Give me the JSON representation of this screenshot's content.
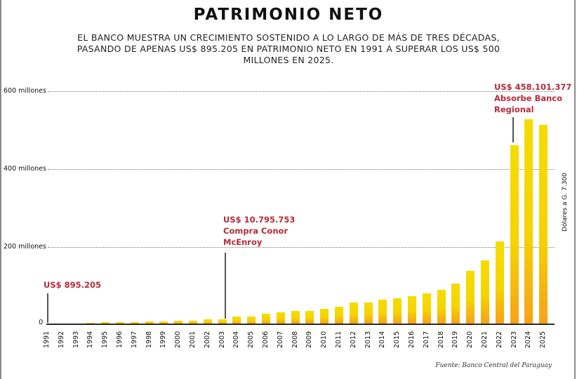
{
  "header": {
    "title": "PATRIMONIO NETO",
    "subtitle_lines": [
      "EL BANCO MUESTRA UN CRECIMIENTO SOSTENIDO A LO LARGO DE MÁS DE TRES DÉCADAS,",
      "PASANDO DE APENAS US$ 895.205 EN PATRIMONIO NETO EN 1991 A SUPERAR LOS US$ 500",
      "MILLONES EN 2025."
    ]
  },
  "axis": {
    "y_ticks": [
      "600 millones",
      "400 millones",
      "200 millones"
    ],
    "zero": "0",
    "side_note": "Dólares a G. 7.300"
  },
  "annotations": {
    "first": {
      "line1": "US$ 895.205"
    },
    "mid": {
      "line1": "US$ 10.795.753",
      "line2": "Compra Conor",
      "line3": "McEnroy"
    },
    "last": {
      "line1": "US$ 458.101.377",
      "line2": "Absorbe Banco",
      "line3": "Regional"
    }
  },
  "source": "Fuente: Banco Central del Paraguay",
  "colors": {
    "bar_top": "#f5dc00",
    "bar_bottom": "#f7a21a",
    "annotation": "#b52a3a"
  },
  "chart_data": {
    "type": "bar",
    "title": "PATRIMONIO NETO",
    "subtitle": "El banco muestra un crecimiento sostenido a lo largo de más de tres décadas, pasando de apenas US$ 895.205 en patrimonio neto en 1991 a superar los US$ 500 millones en 2025.",
    "xlabel": "",
    "ylabel": "Dólares a G. 7.300",
    "ylim": [
      0,
      600
    ],
    "unit": "millones US$",
    "grid": true,
    "categories": [
      "1991",
      "1992",
      "1993",
      "1994",
      "1995",
      "1996",
      "1997",
      "1998",
      "1999",
      "2000",
      "2001",
      "2002",
      "2003",
      "2004",
      "2005",
      "2006",
      "2007",
      "2008",
      "2009",
      "2010",
      "2011",
      "2012",
      "2013",
      "2014",
      "2015",
      "2016",
      "2017",
      "2018",
      "2019",
      "2020",
      "2021",
      "2022",
      "2023",
      "2024",
      "2025"
    ],
    "values": [
      0.9,
      0.5,
      0.5,
      1.5,
      4,
      4,
      4,
      6,
      6,
      7,
      7,
      11,
      10.8,
      18,
      18,
      25,
      28,
      32,
      32,
      38,
      43,
      54,
      54,
      61,
      65,
      70,
      77,
      86,
      103,
      135,
      162,
      210,
      458.1,
      525,
      510
    ],
    "annotations": [
      {
        "x": "1991",
        "text": "US$ 895.205"
      },
      {
        "x": "2003",
        "text": "US$ 10.795.753 Compra Conor McEnroy"
      },
      {
        "x": "2023",
        "text": "US$ 458.101.377 Absorbe Banco Regional"
      }
    ],
    "source": "Fuente: Banco Central del Paraguay"
  }
}
